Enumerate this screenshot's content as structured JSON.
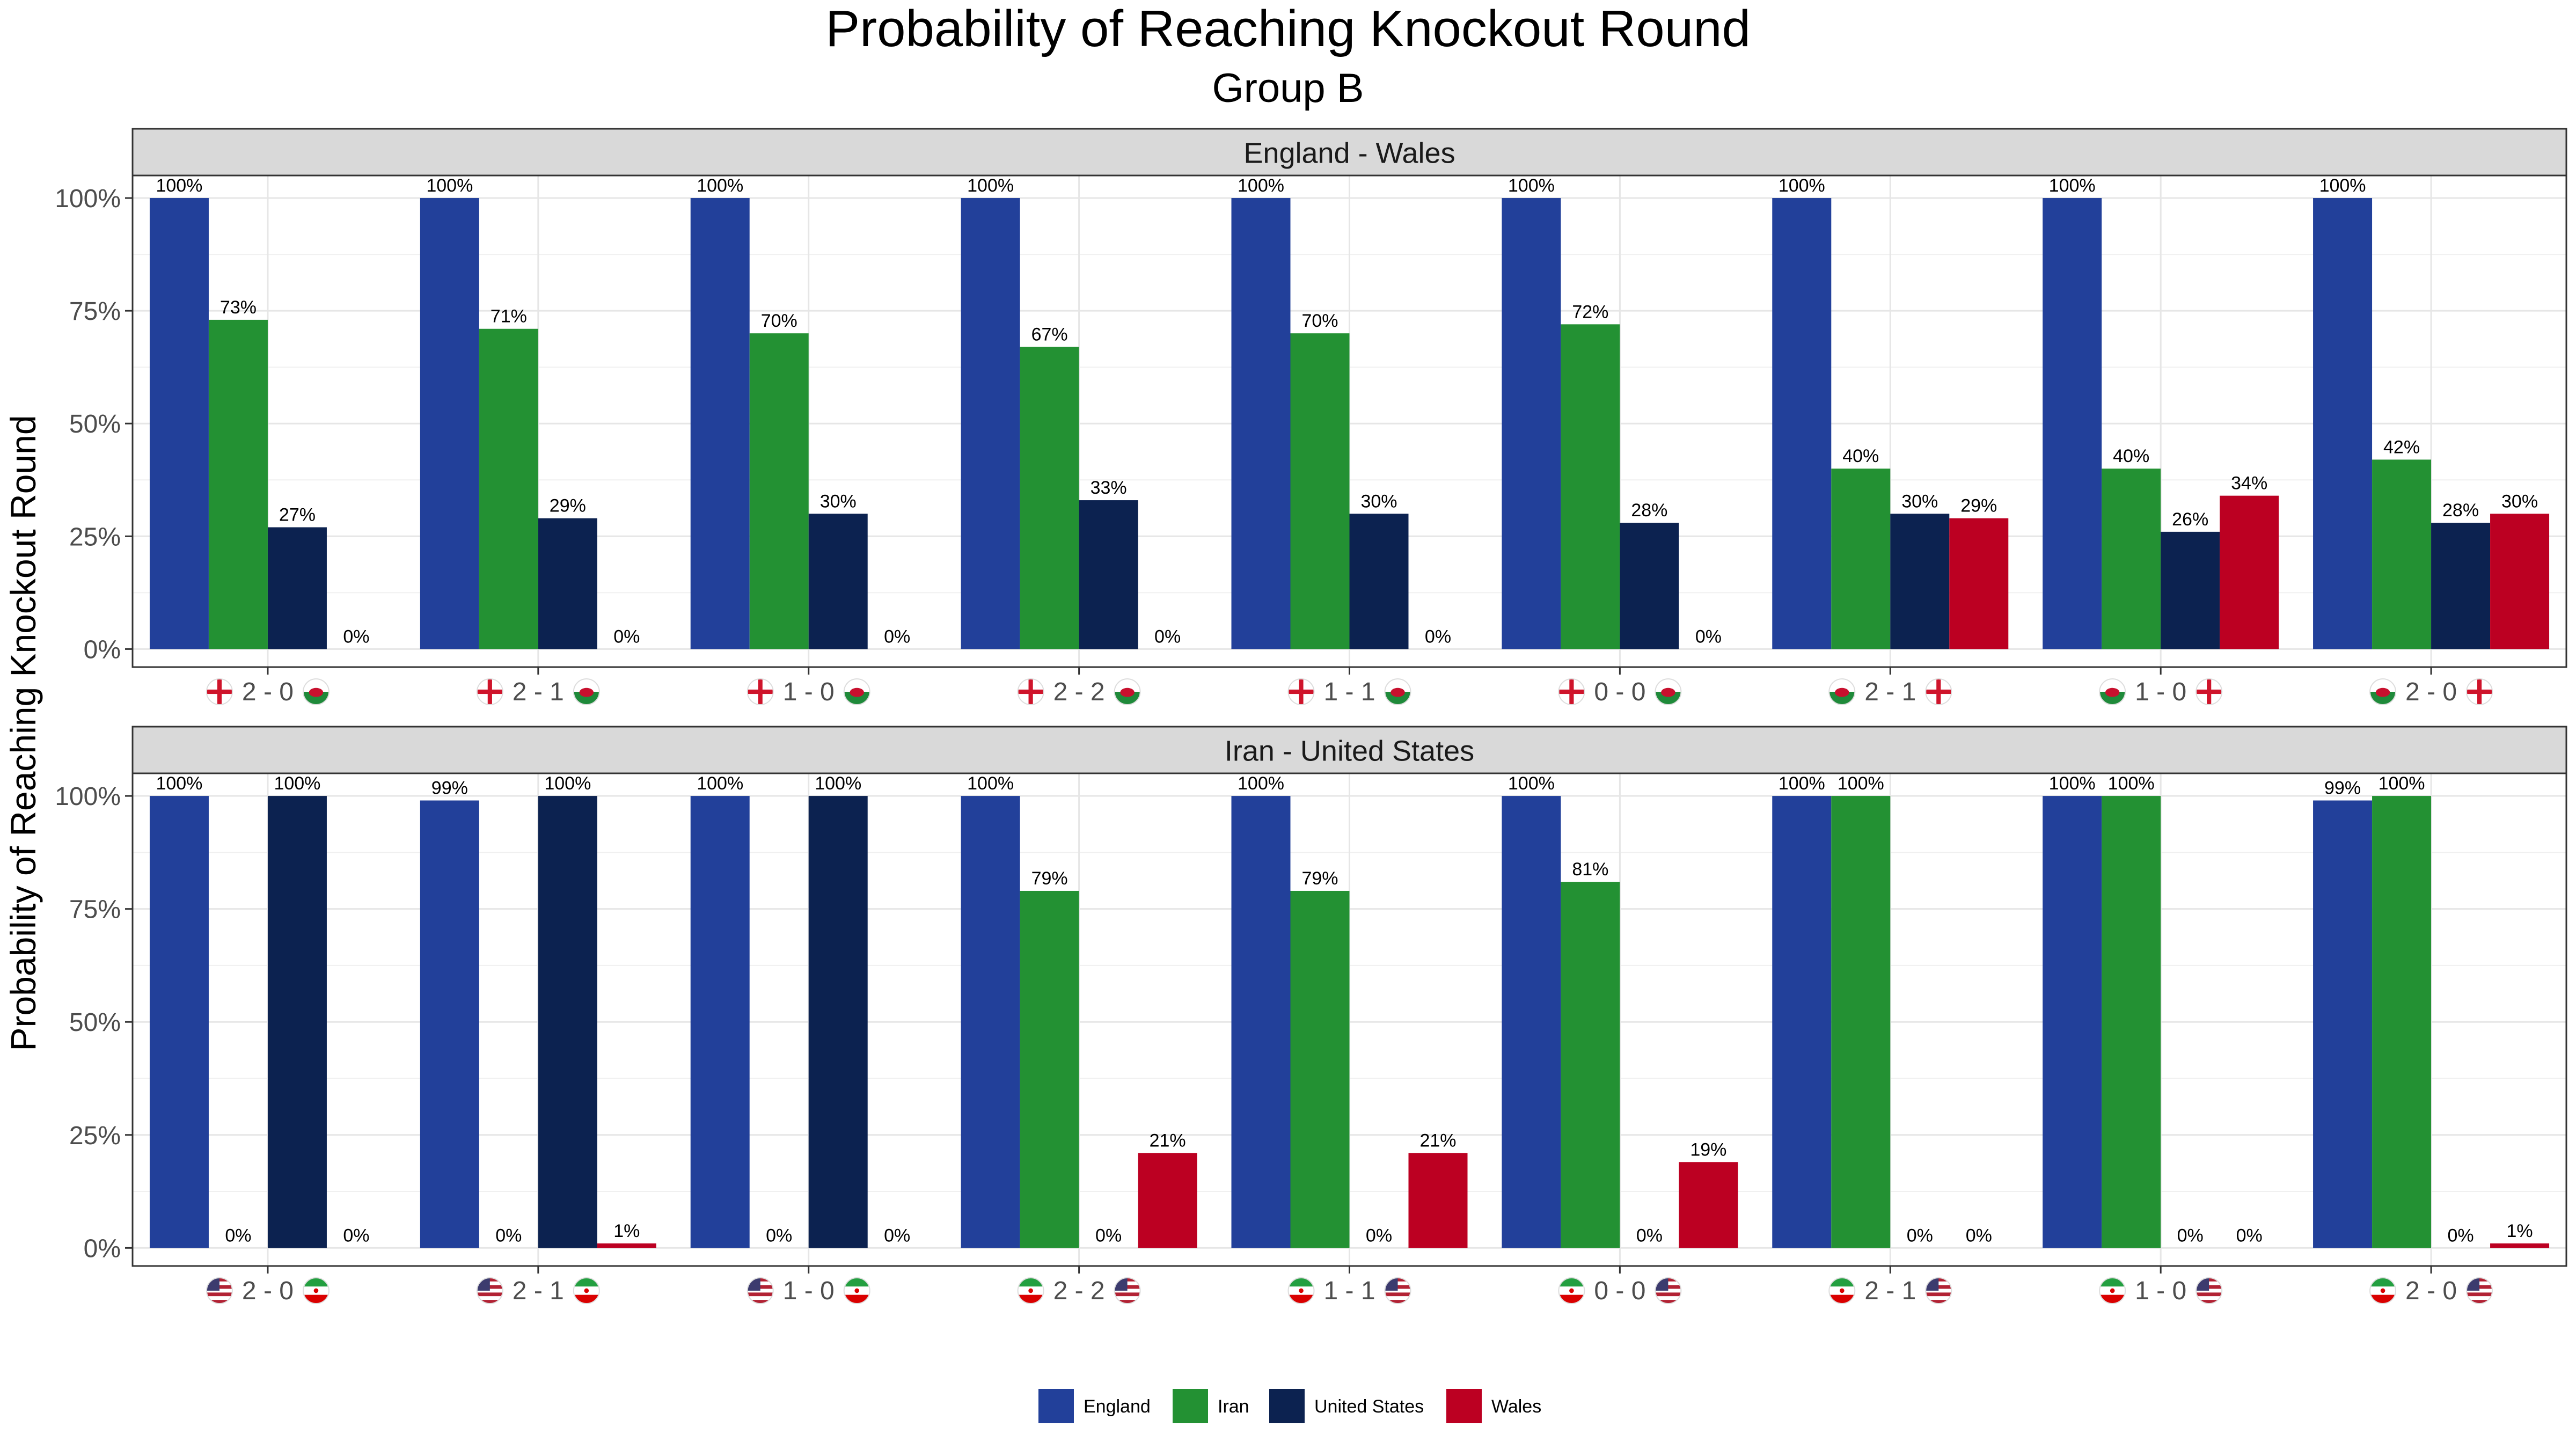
{
  "chart_data": {
    "type": "bar",
    "title": "Probability of Reaching Knockout Round",
    "subtitle": "Group B",
    "ylabel": "Probability of Reaching Knockout Round",
    "xlabel": "",
    "ylim": [
      0,
      1.05
    ],
    "yticks": [
      "0%",
      "25%",
      "50%",
      "75%",
      "100%"
    ],
    "grid": true,
    "legend_position": "bottom",
    "series_names": [
      "England",
      "Iran",
      "United States",
      "Wales"
    ],
    "colors": {
      "England": "#22409a",
      "Iran": "#239133",
      "United States": "#0c2250",
      "Wales": "#bc0022"
    },
    "panels": [
      {
        "strip": "England - Wales",
        "categories": [
          {
            "label": "2 - 0",
            "left_flag": "england-flag-icon",
            "right_flag": "wales-flag-icon"
          },
          {
            "label": "2 - 1",
            "left_flag": "england-flag-icon",
            "right_flag": "wales-flag-icon"
          },
          {
            "label": "1 - 0",
            "left_flag": "england-flag-icon",
            "right_flag": "wales-flag-icon"
          },
          {
            "label": "2 - 2",
            "left_flag": "england-flag-icon",
            "right_flag": "wales-flag-icon"
          },
          {
            "label": "1 - 1",
            "left_flag": "england-flag-icon",
            "right_flag": "wales-flag-icon"
          },
          {
            "label": "0 - 0",
            "left_flag": "england-flag-icon",
            "right_flag": "wales-flag-icon"
          },
          {
            "label": "2 - 1",
            "left_flag": "wales-flag-icon",
            "right_flag": "england-flag-icon"
          },
          {
            "label": "1 - 0",
            "left_flag": "wales-flag-icon",
            "right_flag": "england-flag-icon"
          },
          {
            "label": "2 - 0",
            "left_flag": "wales-flag-icon",
            "right_flag": "england-flag-icon"
          }
        ],
        "series": [
          {
            "name": "England",
            "values": [
              1.0,
              1.0,
              1.0,
              1.0,
              1.0,
              1.0,
              1.0,
              1.0,
              1.0
            ],
            "labels": [
              "100%",
              "100%",
              "100%",
              "100%",
              "100%",
              "100%",
              "100%",
              "100%",
              "100%"
            ]
          },
          {
            "name": "Iran",
            "values": [
              0.73,
              0.71,
              0.7,
              0.67,
              0.7,
              0.72,
              0.4,
              0.4,
              0.42
            ],
            "labels": [
              "73%",
              "71%",
              "70%",
              "67%",
              "70%",
              "72%",
              "40%",
              "40%",
              "42%"
            ]
          },
          {
            "name": "United States",
            "values": [
              0.27,
              0.29,
              0.3,
              0.33,
              0.3,
              0.28,
              0.3,
              0.26,
              0.28
            ],
            "labels": [
              "27%",
              "29%",
              "30%",
              "33%",
              "30%",
              "28%",
              "30%",
              "26%",
              "28%"
            ]
          },
          {
            "name": "Wales",
            "values": [
              0.0,
              0.0,
              0.0,
              0.0,
              0.0,
              0.0,
              0.29,
              0.34,
              0.3
            ],
            "labels": [
              "0%",
              "0%",
              "0%",
              "0%",
              "0%",
              "0%",
              "29%",
              "34%",
              "30%"
            ]
          }
        ]
      },
      {
        "strip": "Iran - United States",
        "categories": [
          {
            "label": "2 - 0",
            "left_flag": "usa-flag-icon",
            "right_flag": "iran-flag-icon"
          },
          {
            "label": "2 - 1",
            "left_flag": "usa-flag-icon",
            "right_flag": "iran-flag-icon"
          },
          {
            "label": "1 - 0",
            "left_flag": "usa-flag-icon",
            "right_flag": "iran-flag-icon"
          },
          {
            "label": "2 - 2",
            "left_flag": "iran-flag-icon",
            "right_flag": "usa-flag-icon"
          },
          {
            "label": "1 - 1",
            "left_flag": "iran-flag-icon",
            "right_flag": "usa-flag-icon"
          },
          {
            "label": "0 - 0",
            "left_flag": "iran-flag-icon",
            "right_flag": "usa-flag-icon"
          },
          {
            "label": "2 - 1",
            "left_flag": "iran-flag-icon",
            "right_flag": "usa-flag-icon"
          },
          {
            "label": "1 - 0",
            "left_flag": "iran-flag-icon",
            "right_flag": "usa-flag-icon"
          },
          {
            "label": "2 - 0",
            "left_flag": "iran-flag-icon",
            "right_flag": "usa-flag-icon"
          }
        ],
        "series": [
          {
            "name": "England",
            "values": [
              1.0,
              0.99,
              1.0,
              1.0,
              1.0,
              1.0,
              1.0,
              1.0,
              0.99
            ],
            "labels": [
              "100%",
              "99%",
              "100%",
              "100%",
              "100%",
              "100%",
              "100%",
              "100%",
              "99%"
            ]
          },
          {
            "name": "Iran",
            "values": [
              0.0,
              0.0,
              0.0,
              0.79,
              0.79,
              0.81,
              1.0,
              1.0,
              1.0
            ],
            "labels": [
              "0%",
              "0%",
              "0%",
              "79%",
              "79%",
              "81%",
              "100%",
              "100%",
              "100%"
            ]
          },
          {
            "name": "United States",
            "values": [
              1.0,
              1.0,
              1.0,
              0.0,
              0.0,
              0.0,
              0.0,
              0.0,
              0.0
            ],
            "labels": [
              "100%",
              "100%",
              "100%",
              "0%",
              "0%",
              "0%",
              "0%",
              "0%",
              "0%"
            ]
          },
          {
            "name": "Wales",
            "values": [
              0.0,
              0.01,
              0.0,
              0.21,
              0.21,
              0.19,
              0.0,
              0.0,
              0.01
            ],
            "labels": [
              "0%",
              "1%",
              "0%",
              "21%",
              "21%",
              "19%",
              "0%",
              "0%",
              "1%"
            ]
          }
        ]
      }
    ]
  }
}
